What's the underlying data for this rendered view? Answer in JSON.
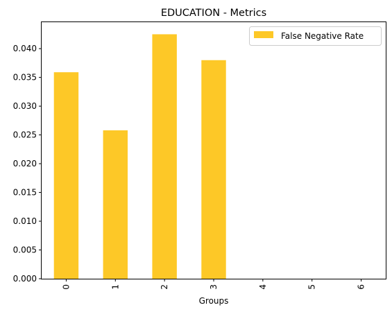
{
  "chart_data": {
    "type": "bar",
    "title": "EDUCATION - Metrics",
    "xlabel": "Groups",
    "ylabel": "",
    "categories": [
      "0",
      "1",
      "2",
      "3",
      "4",
      "5",
      "6"
    ],
    "series": [
      {
        "name": "False Negative Rate",
        "color": "#fdc827",
        "values": [
          0.0359,
          0.0258,
          0.0425,
          0.038,
          0,
          0,
          0
        ]
      }
    ],
    "ylim": [
      0,
      0.0446
    ],
    "yticks": [
      "0.000",
      "0.005",
      "0.010",
      "0.015",
      "0.020",
      "0.025",
      "0.030",
      "0.035",
      "0.040"
    ],
    "ytick_values": [
      0,
      0.005,
      0.01,
      0.015,
      0.02,
      0.025,
      0.03,
      0.035,
      0.04
    ],
    "xtick_rotation": "vertical",
    "legend_position": "top-right",
    "grid": false
  }
}
